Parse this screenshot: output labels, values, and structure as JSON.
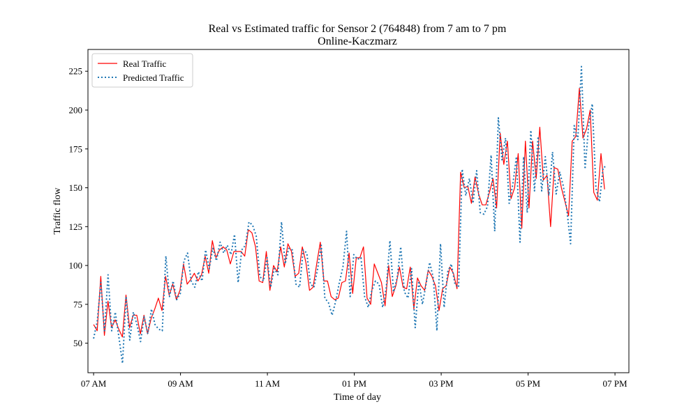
{
  "chart_data": {
    "type": "line",
    "title": "Real vs Estimated traffic for Sensor 2 (764848) from 7 am to 7 pm",
    "subtitle": "Online-Kaczmarz",
    "xlabel": "Time of day",
    "ylabel": "Traffic flow",
    "x_unit": "hours",
    "xlim": [
      6.87,
      19.32
    ],
    "ylim": [
      31,
      239
    ],
    "xticks": [
      {
        "value": 7,
        "label": "07 AM"
      },
      {
        "value": 9,
        "label": "09 AM"
      },
      {
        "value": 11,
        "label": "11 AM"
      },
      {
        "value": 13,
        "label": "01 PM"
      },
      {
        "value": 15,
        "label": "03 PM"
      },
      {
        "value": 17,
        "label": "05 PM"
      },
      {
        "value": 19,
        "label": "07 PM"
      }
    ],
    "yticks": [
      {
        "value": 50,
        "label": "50"
      },
      {
        "value": 75,
        "label": "75"
      },
      {
        "value": 100,
        "label": "100"
      },
      {
        "value": 125,
        "label": "125"
      },
      {
        "value": 150,
        "label": "150"
      },
      {
        "value": 175,
        "label": "175"
      },
      {
        "value": 200,
        "label": "200"
      },
      {
        "value": 225,
        "label": "225"
      }
    ],
    "grid": false,
    "legend_position": "top-left",
    "x_start": 7.0,
    "x_step": 0.0833333,
    "series": [
      {
        "name": "Real Traffic",
        "style": "solid",
        "color": "#ff0000",
        "values": [
          62,
          58,
          93,
          55,
          77,
          60,
          65,
          59,
          54,
          81,
          60,
          68,
          68,
          56,
          68,
          56,
          66,
          72,
          79,
          71,
          93,
          81,
          88,
          78,
          84,
          101,
          88,
          91,
          95,
          90,
          94,
          106,
          95,
          116,
          105,
          110,
          112,
          110,
          101,
          109,
          109,
          109,
          106,
          123,
          121,
          112,
          90,
          89,
          109,
          84,
          100,
          96,
          112,
          99,
          114,
          109,
          93,
          95,
          112,
          102,
          84,
          86,
          101,
          115,
          90,
          90,
          80,
          78,
          79,
          89,
          90,
          108,
          82,
          105,
          105,
          112,
          79,
          75,
          101,
          95,
          89,
          74,
          100,
          80,
          87,
          99,
          86,
          85,
          99,
          72,
          92,
          87,
          84,
          97,
          93,
          87,
          71,
          85,
          87,
          99,
          95,
          85,
          160,
          150,
          151,
          140,
          157,
          146,
          139,
          139,
          147,
          156,
          137,
          185,
          165,
          180,
          143,
          150,
          172,
          124,
          180,
          137,
          180,
          156,
          189,
          155,
          158,
          125,
          163,
          162,
          150,
          141,
          132,
          180,
          183,
          214,
          182,
          188,
          200,
          147,
          142,
          172,
          149
        ],
        "x_end": 18.76
      },
      {
        "name": "Predicted Traffic",
        "style": "dotted",
        "color": "#1f77b4",
        "values": [
          53,
          64,
          89,
          58,
          94,
          58,
          70,
          54,
          37,
          80,
          52,
          70,
          62,
          51,
          67,
          56,
          72,
          62,
          59,
          58,
          106,
          80,
          90,
          78,
          82,
          103,
          108,
          90,
          86,
          96,
          90,
          110,
          98,
          111,
          103,
          115,
          108,
          113,
          107,
          120,
          89,
          110,
          113,
          128,
          126,
          119,
          93,
          90,
          105,
          86,
          98,
          94,
          128,
          101,
          111,
          110,
          88,
          86,
          110,
          108,
          88,
          86,
          98,
          113,
          79,
          76,
          68,
          77,
          89,
          99,
          122,
          80,
          107,
          104,
          105,
          80,
          73,
          84,
          90,
          88,
          73,
          86,
          116,
          83,
          92,
          112,
          83,
          79,
          98,
          60,
          90,
          75,
          88,
          102,
          92,
          58,
          114,
          73,
          96,
          101,
          88,
          86,
          162,
          145,
          156,
          140,
          161,
          134,
          133,
          138,
          171,
          122,
          195,
          168,
          182,
          140,
          152,
          170,
          115,
          170,
          134,
          187,
          148,
          183,
          148,
          170,
          145,
          173,
          146,
          160,
          151,
          135,
          114,
          190,
          181,
          228,
          162,
          190,
          204,
          150,
          141,
          163,
          164
        ],
        "x_end": 18.81
      }
    ]
  }
}
